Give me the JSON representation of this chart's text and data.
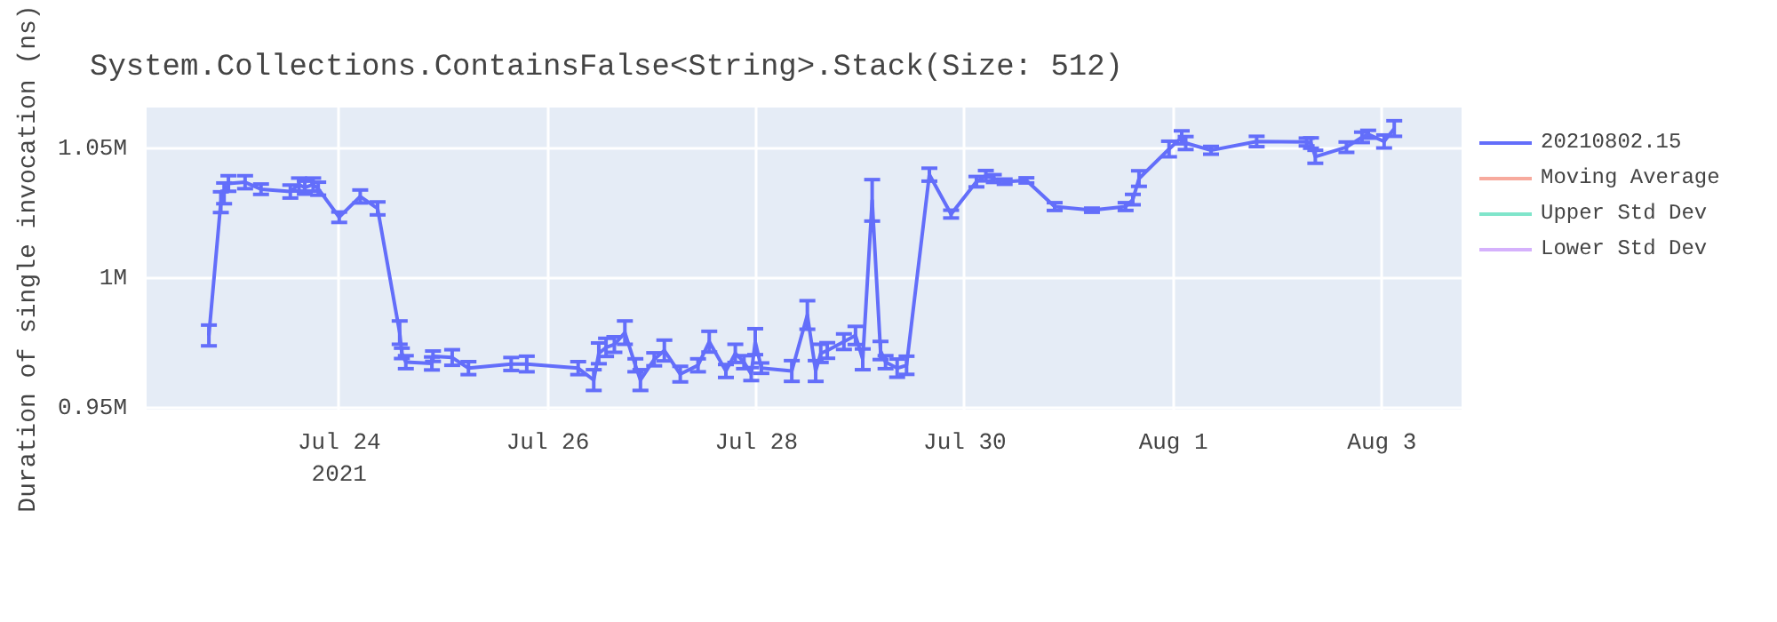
{
  "chart_data": {
    "type": "line",
    "title": "System.Collections.ContainsFalse<String>.Stack(Size: 512)",
    "ylabel": "Duration of single invocation (ns)",
    "x": [
      "2021-07-22T18:00",
      "2021-07-22T20:45",
      "2021-07-22T21:30",
      "2021-07-22T22:30",
      "2021-07-23T02:20",
      "2021-07-23T06:00",
      "2021-07-23T12:45",
      "2021-07-23T14:45",
      "2021-07-23T16:05",
      "2021-07-23T18:00",
      "2021-07-23T19:10",
      "2021-07-24T00:00",
      "2021-07-24T04:50",
      "2021-07-24T08:50",
      "2021-07-24T13:55",
      "2021-07-24T14:25",
      "2021-07-24T15:20",
      "2021-07-24T21:20",
      "2021-07-24T21:35",
      "2021-07-25T02:00",
      "2021-07-25T05:45",
      "2021-07-25T15:35",
      "2021-07-25T19:10",
      "2021-07-26T07:00",
      "2021-07-26T10:35",
      "2021-07-26T11:45",
      "2021-07-26T13:25",
      "2021-07-26T15:20",
      "2021-07-26T17:45",
      "2021-07-26T20:10",
      "2021-07-26T21:20",
      "2021-07-27T00:30",
      "2021-07-27T02:50",
      "2021-07-27T06:30",
      "2021-07-27T10:35",
      "2021-07-27T13:10",
      "2021-07-27T17:00",
      "2021-07-27T19:10",
      "2021-07-27T21:10",
      "2021-07-27T22:50",
      "2021-07-27T23:45",
      "2021-07-28T01:10",
      "2021-07-28T08:10",
      "2021-07-28T11:45",
      "2021-07-28T13:40",
      "2021-07-28T14:50",
      "2021-07-28T16:20",
      "2021-07-28T20:10",
      "2021-07-28T22:50",
      "2021-07-29T00:30",
      "2021-07-29T02:40",
      "2021-07-29T04:35",
      "2021-07-29T05:45",
      "2021-07-29T08:25",
      "2021-07-29T10:35",
      "2021-07-29T15:50",
      "2021-07-29T20:50",
      "2021-07-30T02:40",
      "2021-07-30T04:50",
      "2021-07-30T06:40",
      "2021-07-30T09:10",
      "2021-07-30T14:10",
      "2021-07-30T20:40",
      "2021-07-31T05:15",
      "2021-07-31T13:00",
      "2021-07-31T14:40",
      "2021-07-31T16:05",
      "2021-07-31T23:00",
      "2021-08-01T01:55",
      "2021-08-01T02:50",
      "2021-08-01T08:40",
      "2021-08-01T19:10",
      "2021-08-02T06:40",
      "2021-08-02T07:40",
      "2021-08-02T08:40",
      "2021-08-02T15:50",
      "2021-08-02T19:25",
      "2021-08-02T20:50",
      "2021-08-03T00:30",
      "2021-08-03T02:50"
    ],
    "series": [
      {
        "name": "20210802.15",
        "color": "#636efa",
        "values": [
          977900,
          1029300,
          1032700,
          1036500,
          1037000,
          1034300,
          1033400,
          1036100,
          1034900,
          1036100,
          1034500,
          1023500,
          1031500,
          1026900,
          979000,
          971000,
          967600,
          967100,
          969900,
          969400,
          965300,
          966900,
          966900,
          965300,
          960700,
          971000,
          973300,
          974400,
          979000,
          966400,
          960700,
          968700,
          972100,
          963000,
          966400,
          975500,
          964200,
          971000,
          967600,
          963000,
          975500,
          965300,
          964200,
          985800,
          964200,
          971000,
          972100,
          975500,
          977900,
          968700,
          1030000,
          972100,
          967600,
          965300,
          966400,
          1039900,
          1024700,
          1037200,
          1039500,
          1038400,
          1037200,
          1037700,
          1027600,
          1026200,
          1027600,
          1030300,
          1038400,
          1049800,
          1054300,
          1052100,
          1049300,
          1052700,
          1052500,
          1052100,
          1046800,
          1050500,
          1054300,
          1055500,
          1052700,
          1057700
        ],
        "errors": [
          4000,
          4000,
          4000,
          3000,
          2500,
          2000,
          2500,
          2500,
          2500,
          2500,
          2500,
          2000,
          2500,
          2500,
          4500,
          2000,
          2500,
          2500,
          2000,
          3000,
          2500,
          2500,
          3000,
          2500,
          4000,
          4000,
          3500,
          3000,
          4500,
          2500,
          4000,
          2500,
          4000,
          3000,
          2500,
          4000,
          2500,
          3500,
          2500,
          2500,
          5000,
          2000,
          4000,
          5500,
          4000,
          3500,
          3000,
          3000,
          3500,
          4000,
          8000,
          3500,
          2500,
          3500,
          3500,
          2500,
          1500,
          2000,
          2000,
          1500,
          1000,
          1000,
          1500,
          800,
          1500,
          2000,
          3000,
          3000,
          2500,
          2500,
          1500,
          2000,
          1500,
          2000,
          2500,
          2000,
          2000,
          1500,
          2500,
          3000
        ]
      },
      {
        "name": "Moving Average",
        "color": "#f7aa9d",
        "values": [
          null,
          null,
          null,
          null,
          null,
          null,
          null,
          null,
          null,
          null,
          null,
          null,
          null,
          null,
          null,
          null,
          null,
          null,
          null,
          null,
          null,
          null,
          null,
          null,
          null,
          null,
          null,
          null,
          null,
          null,
          null,
          null,
          null,
          null,
          null,
          null,
          null,
          null,
          null,
          null,
          null,
          null,
          null,
          null,
          null,
          null,
          null,
          null,
          null,
          null,
          null,
          null,
          null,
          null,
          null,
          null,
          null,
          null,
          null,
          null,
          null,
          null,
          null,
          null,
          null,
          null,
          null,
          null,
          null,
          null,
          null,
          null,
          null,
          null,
          null,
          null,
          null,
          null,
          null,
          null
        ]
      },
      {
        "name": "Upper Std Dev",
        "color": "#80e5cb",
        "values": [
          null,
          null,
          null,
          null,
          null,
          null,
          null,
          null,
          null,
          null,
          null,
          null,
          null,
          null,
          null,
          null,
          null,
          null,
          null,
          null,
          null,
          null,
          null,
          null,
          null,
          null,
          null,
          null,
          null,
          null,
          null,
          null,
          null,
          null,
          null,
          null,
          null,
          null,
          null,
          null,
          null,
          null,
          null,
          null,
          null,
          null,
          null,
          null,
          null,
          null,
          null,
          null,
          null,
          null,
          null,
          null,
          null,
          null,
          null,
          null,
          null,
          null,
          null,
          null,
          null,
          null,
          null,
          null,
          null,
          null,
          null,
          null,
          null,
          null,
          null,
          null,
          null,
          null,
          null,
          null
        ]
      },
      {
        "name": "Lower Std Dev",
        "color": "#d5b1fc",
        "values": [
          null,
          null,
          null,
          null,
          null,
          null,
          null,
          null,
          null,
          null,
          null,
          null,
          null,
          null,
          null,
          null,
          null,
          null,
          null,
          null,
          null,
          null,
          null,
          null,
          null,
          null,
          null,
          null,
          null,
          null,
          null,
          null,
          null,
          null,
          null,
          null,
          null,
          null,
          null,
          null,
          null,
          null,
          null,
          null,
          null,
          null,
          null,
          null,
          null,
          null,
          null,
          null,
          null,
          null,
          null,
          null,
          null,
          null,
          null,
          null,
          null,
          null,
          null,
          null,
          null,
          null,
          null,
          null,
          null,
          null,
          null,
          null,
          null,
          null,
          null,
          null,
          null,
          null,
          null,
          null
        ]
      }
    ],
    "xlim": [
      "2021-07-22T03:40",
      "2021-08-03T18:20"
    ],
    "xticks": [
      {
        "value": "2021-07-24",
        "label": "Jul 24\n2021"
      },
      {
        "value": "2021-07-26",
        "label": "Jul 26"
      },
      {
        "value": "2021-07-28",
        "label": "Jul 28"
      },
      {
        "value": "2021-07-30",
        "label": "Jul 30"
      },
      {
        "value": "2021-08-01",
        "label": "Aug 1"
      },
      {
        "value": "2021-08-03",
        "label": "Aug 3"
      }
    ],
    "ylim": [
      949300,
      1065800
    ],
    "yticks": [
      {
        "value": 950000,
        "label": "0.95M"
      },
      {
        "value": 1000000,
        "label": "1M"
      },
      {
        "value": 1050000,
        "label": "1.05M"
      }
    ],
    "grid": true,
    "legend": "top right",
    "marker": "none",
    "line_style": "solid"
  }
}
